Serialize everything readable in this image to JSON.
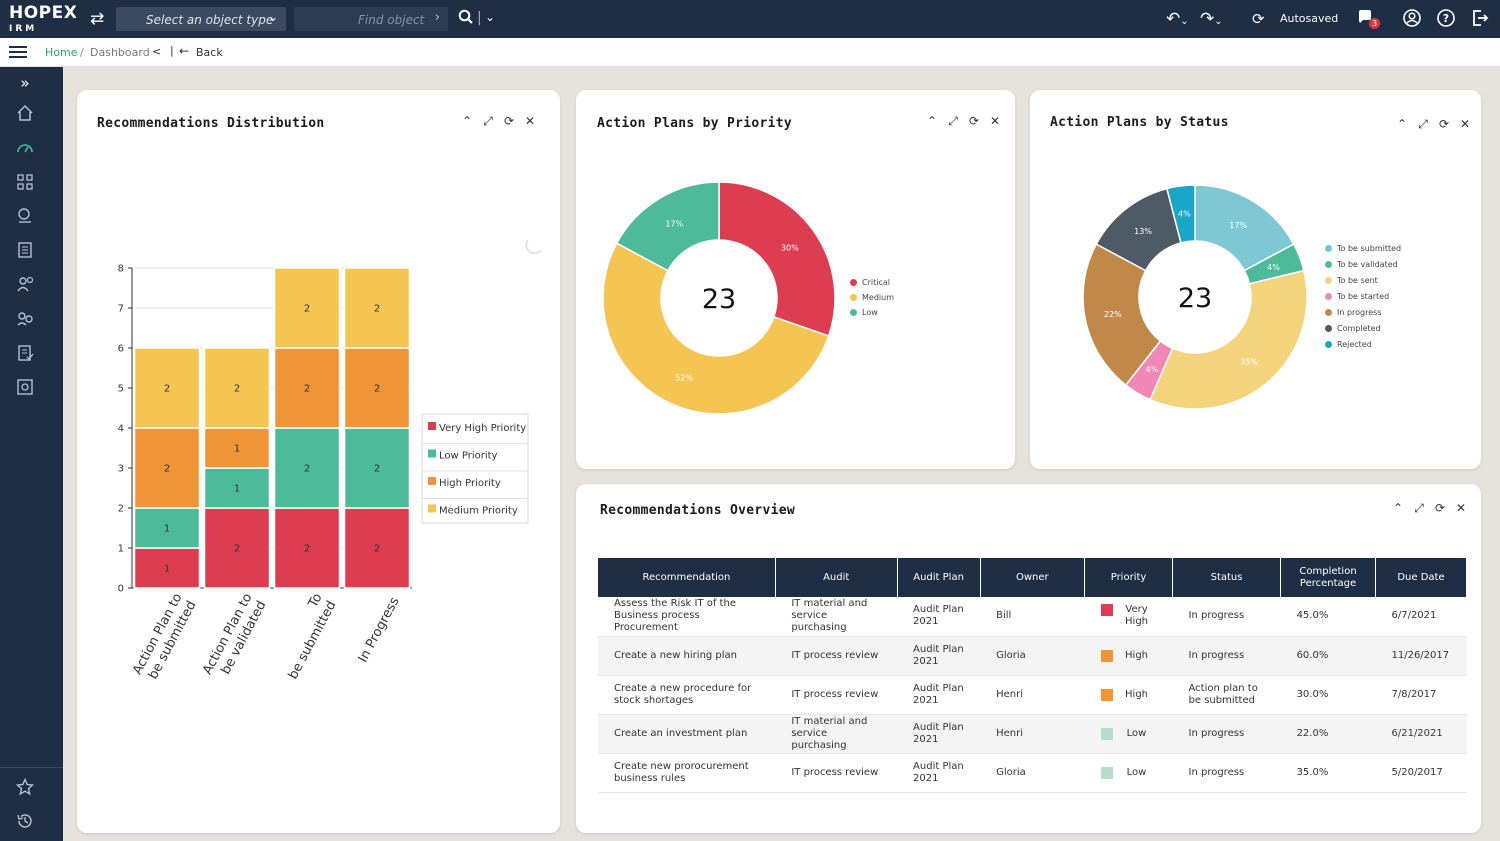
{
  "app": {
    "logo_main": "HOPEX",
    "logo_sub": "IRM"
  },
  "topbar": {
    "object_type_placeholder": "Select an object type",
    "find_placeholder": "Find object",
    "autosaved": "Autosaved",
    "notification_count": "3"
  },
  "breadcrumb": {
    "home": "Home",
    "sep": "/",
    "current": "Dashboard",
    "back": "Back"
  },
  "panels": {
    "distribution": {
      "title": "Recommendations Distribution"
    },
    "priority": {
      "title": "Action Plans by Priority",
      "center": "23"
    },
    "status": {
      "title": "Action Plans by Status",
      "center": "23"
    },
    "overview": {
      "title": "Recommendations Overview"
    }
  },
  "colors": {
    "red": "#dc3d50",
    "teal": "#4dba99",
    "orange": "#ef9437",
    "yellow": "#f5c554"
  },
  "chart_data": [
    {
      "type": "bar",
      "stacked": true,
      "categories": [
        "Action Plan to be submitted",
        "Action Plan to be validated",
        "To be submitted",
        "In Progress"
      ],
      "series": [
        {
          "name": "Very High Priority",
          "color": "#dc3d50",
          "values": [
            1,
            2,
            2,
            2
          ]
        },
        {
          "name": "Low Priority",
          "color": "#4dba99",
          "values": [
            1,
            1,
            2,
            2
          ]
        },
        {
          "name": "High Priority",
          "color": "#ef9437",
          "values": [
            2,
            1,
            2,
            2
          ]
        },
        {
          "name": "Medium Priority",
          "color": "#f5c554",
          "values": [
            2,
            2,
            2,
            2
          ]
        }
      ],
      "ylim": [
        0,
        8
      ],
      "yticks": [
        0,
        1,
        2,
        3,
        4,
        5,
        6,
        7,
        8
      ],
      "legend": "right"
    },
    {
      "type": "pie",
      "donut": true,
      "center_label": "23",
      "labels": [
        "Critical",
        "Medium",
        "Low"
      ],
      "values": [
        30,
        52,
        17
      ],
      "value_labels": [
        "30%",
        "52%",
        "17%"
      ],
      "colors": [
        "#dc3d50",
        "#f5c554",
        "#4dba99"
      ],
      "legend": "right"
    },
    {
      "type": "pie",
      "donut": true,
      "center_label": "23",
      "labels": [
        "To be submitted",
        "To be validated",
        "To be sent",
        "To be started",
        "In progress",
        "Completed",
        "Rejected"
      ],
      "legend_colors": [
        "#6ec9d5",
        "#4dba99",
        "#f3d37b",
        "#ef88b5",
        "#c0894a",
        "#4e5a66",
        "#19a6c7"
      ],
      "slices": [
        {
          "label": "17%",
          "value": 17,
          "color": "#7ec8d4"
        },
        {
          "label": "4%",
          "value": 4,
          "color": "#4dba99"
        },
        {
          "label": "35%",
          "value": 35,
          "color": "#f3d37b"
        },
        {
          "label": "4%",
          "value": 4,
          "color": "#ef88b5"
        },
        {
          "label": "22%",
          "value": 22,
          "color": "#c0894a"
        },
        {
          "label": "13%",
          "value": 13,
          "color": "#4e5a66"
        },
        {
          "label": "4%",
          "value": 4,
          "color": "#19a6c7"
        }
      ],
      "legend": "right"
    }
  ],
  "overview": {
    "headers": [
      "Recommendation",
      "Audit",
      "Audit Plan",
      "Owner",
      "Priority",
      "Status",
      "Completion Percentage",
      "Due Date"
    ],
    "rows": [
      {
        "recommendation": "Assess the Risk IT of the Business process Procurement",
        "audit": "IT material and service purchasing",
        "plan": "Audit Plan 2021",
        "owner": "Bill",
        "priority": "Very High",
        "priority_color": "#dc3d50",
        "status": "In progress",
        "completion": "45.0%",
        "due": "6/7/2021"
      },
      {
        "recommendation": "Create a new hiring plan",
        "audit": "IT process review",
        "plan": "Audit Plan 2021",
        "owner": "Gloria",
        "priority": "High",
        "priority_color": "#ef9437",
        "status": "In progress",
        "completion": "60.0%",
        "due": "11/26/2017"
      },
      {
        "recommendation": "Create a new procedure for stock shortages",
        "audit": "IT process review",
        "plan": "Audit Plan 2021",
        "owner": "Henri",
        "priority": "High",
        "priority_color": "#ef9437",
        "status": "Action plan to be submitted",
        "completion": "30.0%",
        "due": "7/8/2017"
      },
      {
        "recommendation": "Create an investment plan",
        "audit": "IT material and service purchasing",
        "plan": "Audit Plan 2021",
        "owner": "Henri",
        "priority": "Low",
        "priority_color": "#b7dcc8",
        "status": "In progress",
        "completion": "22.0%",
        "due": "6/21/2021"
      },
      {
        "recommendation": "Create new prorocurement business rules",
        "audit": "IT process review",
        "plan": "Audit Plan 2021",
        "owner": "Gloria",
        "priority": "Low",
        "priority_color": "#b7dcc8",
        "status": "In progress",
        "completion": "35.0%",
        "due": "5/20/2017"
      }
    ]
  }
}
